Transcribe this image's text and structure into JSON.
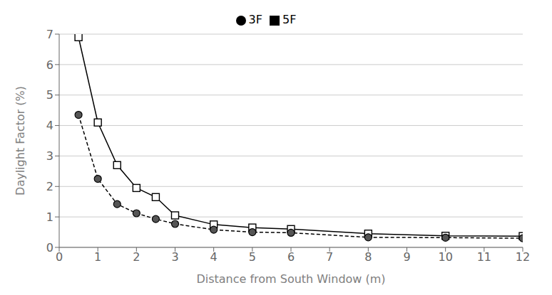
{
  "chart_data": {
    "type": "line",
    "x": [
      0.5,
      1.0,
      1.5,
      2.0,
      2.5,
      3.0,
      4.0,
      5.0,
      6.0,
      8.0,
      10.0,
      12.0
    ],
    "xlabel": "Distance from South Window (m)",
    "ylabel": "Daylight Factor (%)",
    "series": [
      {
        "name": "5F",
        "color": "#000000",
        "marker": "square",
        "line_style": "solid",
        "values": [
          6.9,
          4.1,
          2.7,
          1.95,
          1.65,
          1.05,
          0.75,
          0.65,
          0.6,
          0.45,
          0.38,
          0.37
        ]
      },
      {
        "name": "3F",
        "color": "#000000",
        "marker": "circle",
        "line_style": "dashed",
        "values": [
          4.35,
          2.25,
          1.42,
          1.12,
          0.93,
          0.77,
          0.58,
          0.5,
          0.48,
          0.33,
          0.32,
          0.3
        ]
      }
    ],
    "xlim": [
      0,
      12
    ],
    "ylim": [
      0,
      7
    ],
    "xticks": [
      0,
      1,
      2,
      3,
      4,
      5,
      6,
      7,
      8,
      9,
      10,
      11,
      12
    ],
    "yticks": [
      0,
      1,
      2,
      3,
      4,
      5,
      6,
      7
    ],
    "grid": "y",
    "legend": "top"
  }
}
